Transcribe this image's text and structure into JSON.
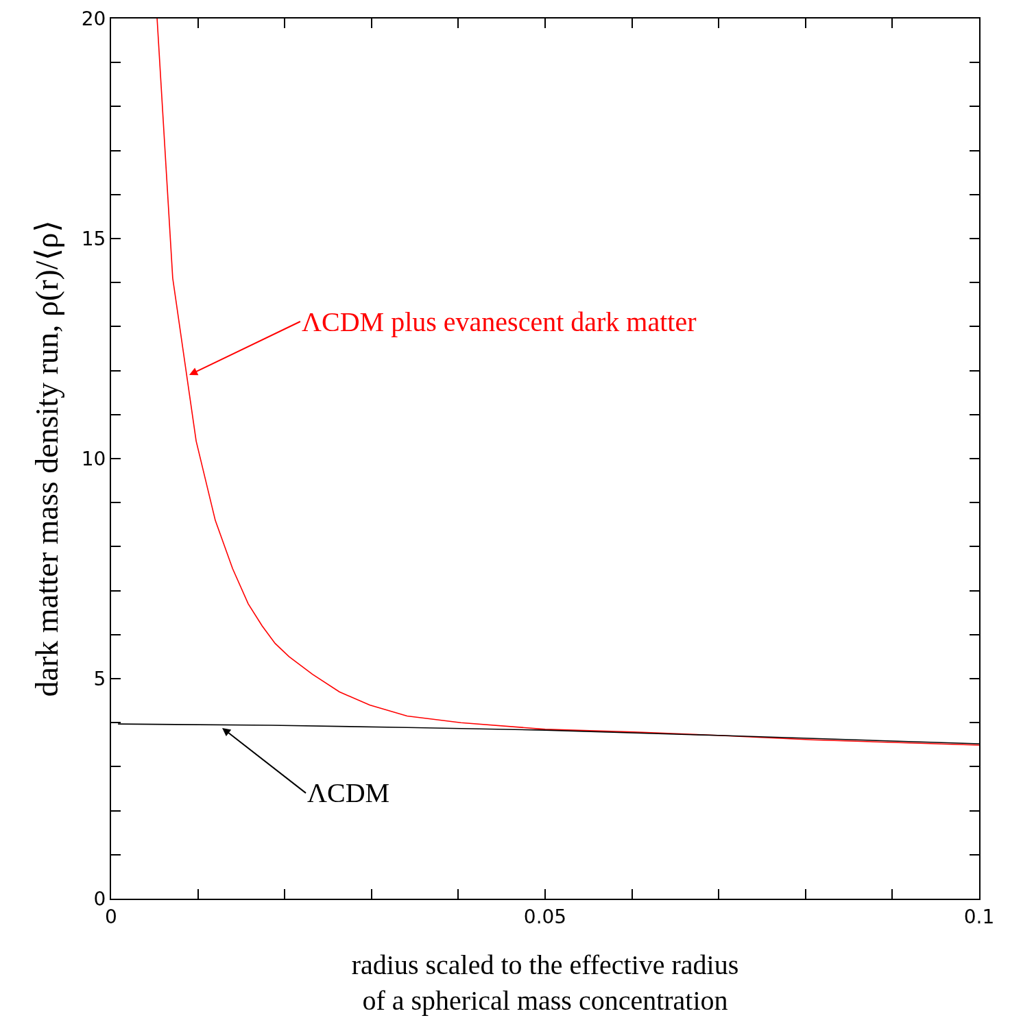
{
  "chart_data": {
    "type": "line",
    "xlabel": "radius scaled to the effective radius\nof a spherical mass concentration",
    "ylabel": "dark matter mass density run, ρ(r)/⟨ρ⟩",
    "series": [
      {
        "color": "#ff0000",
        "x": [
          0.0053,
          0.0071,
          0.0098,
          0.012,
          0.014,
          0.0158,
          0.0174,
          0.0189,
          0.0205,
          0.0232,
          0.0263,
          0.0298,
          0.0341,
          0.0403,
          0.05,
          0.0602,
          0.0699,
          0.0808,
          0.1
        ],
        "values": [
          20,
          14.1,
          10.4,
          8.6,
          7.5,
          6.7,
          6.2,
          5.8,
          5.5,
          5.1,
          4.7,
          4.4,
          4.15,
          4.0,
          3.85,
          3.79,
          3.71,
          3.61,
          3.49
        ]
      },
      {
        "color": "#000000",
        "x": [
          0.0008,
          0.0185,
          0.0341,
          0.05,
          0.0699,
          0.1
        ],
        "values": [
          3.97,
          3.94,
          3.89,
          3.83,
          3.71,
          3.52
        ]
      }
    ],
    "annotations": [
      {
        "text": "ΛCDM plus evanescent dark matter",
        "x": 0.009,
        "y": 11.9
      },
      {
        "text": "ΛCDM",
        "x": 0.0128,
        "y": 3.88
      }
    ],
    "xlim": [
      0,
      0.1
    ],
    "xticks": [
      0,
      {
        "value": 0.01,
        "label": null
      },
      {
        "value": 0.02,
        "label": null
      },
      {
        "value": 0.03,
        "label": null
      },
      {
        "value": 0.04,
        "label": null
      },
      0.05,
      {
        "value": 0.06,
        "label": null
      },
      {
        "value": 0.07,
        "label": null
      },
      {
        "value": 0.08,
        "label": null
      },
      {
        "value": 0.09,
        "label": null
      },
      0.1
    ],
    "ylim": [
      0,
      20
    ],
    "yticks": [
      0,
      {
        "value": 1,
        "label": null
      },
      {
        "value": 2,
        "label": null
      },
      {
        "value": 3,
        "label": null
      },
      {
        "value": 4,
        "label": null
      },
      5,
      {
        "value": 6,
        "label": null
      },
      {
        "value": 7,
        "label": null
      },
      {
        "value": 8,
        "label": null
      },
      {
        "value": 9,
        "label": null
      },
      10,
      {
        "value": 11,
        "label": null
      },
      {
        "value": 12,
        "label": null
      },
      {
        "value": 13,
        "label": null
      },
      {
        "value": 14,
        "label": null
      },
      15,
      {
        "value": 16,
        "label": null
      },
      {
        "value": 17,
        "label": null
      },
      {
        "value": 18,
        "label": null
      },
      {
        "value": 19,
        "label": null
      },
      20
    ],
    "marker": "none",
    "line_style": "solid"
  }
}
